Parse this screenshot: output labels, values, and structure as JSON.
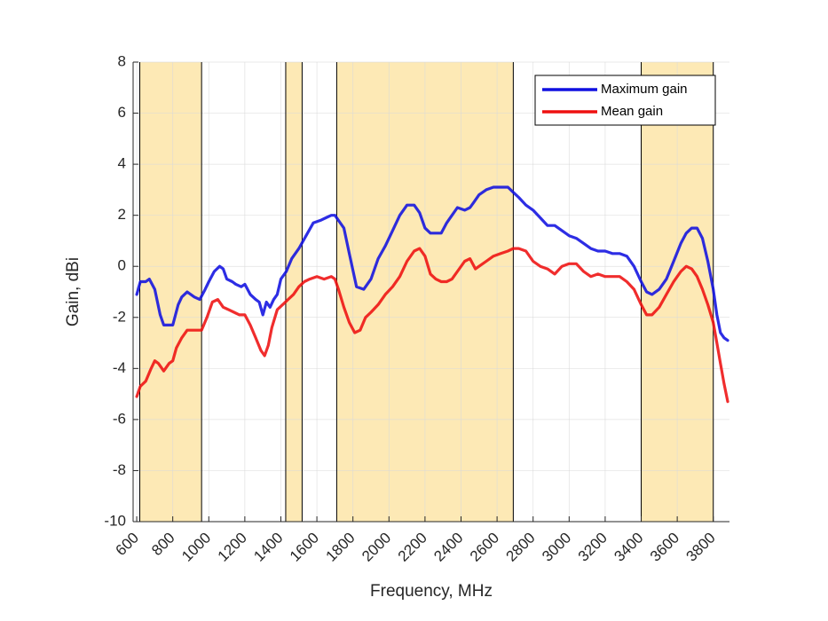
{
  "chart_data": {
    "type": "line",
    "title": "",
    "xlabel": "Frequency, MHz",
    "ylabel": "Gain, dBi",
    "xlim": [
      580,
      3890
    ],
    "ylim": [
      -10,
      8
    ],
    "xticks": [
      600,
      800,
      1000,
      1200,
      1400,
      1600,
      1800,
      2000,
      2200,
      2400,
      2600,
      2800,
      3000,
      3200,
      3400,
      3600,
      3800
    ],
    "xtick_labels": [
      "600",
      "800",
      "1000",
      "1200",
      "1400",
      "1600",
      "1800",
      "2000",
      "2200",
      "2400",
      "2600",
      "2800",
      "3000",
      "3200",
      "3400",
      "3600",
      "3800"
    ],
    "yticks": [
      -10,
      -8,
      -6,
      -4,
      -2,
      0,
      2,
      4,
      6,
      8
    ],
    "ytick_labels": [
      "-10",
      "-8",
      "-6",
      "-4",
      "-2",
      "0",
      "2",
      "4",
      "6",
      "8"
    ],
    "grid": true,
    "legend_position": "top-right",
    "bands": [
      {
        "start": 617,
        "end": 960
      },
      {
        "start": 1427,
        "end": 1518
      },
      {
        "start": 1710,
        "end": 2690
      },
      {
        "start": 3400,
        "end": 3800
      }
    ],
    "colors": {
      "band_fill": "#fde9b5",
      "band_edge": "#000000",
      "grid": "#e6e6e6",
      "axis": "#262626"
    },
    "series": [
      {
        "name": "Maximum gain",
        "color": "#1010e0",
        "x": [
          600,
          620,
          650,
          670,
          700,
          730,
          750,
          780,
          800,
          830,
          850,
          880,
          920,
          950,
          980,
          1000,
          1030,
          1060,
          1080,
          1100,
          1130,
          1150,
          1180,
          1200,
          1230,
          1260,
          1280,
          1300,
          1320,
          1340,
          1360,
          1380,
          1400,
          1430,
          1460,
          1500,
          1540,
          1580,
          1620,
          1650,
          1680,
          1700,
          1720,
          1750,
          1780,
          1820,
          1860,
          1900,
          1940,
          1980,
          2020,
          2060,
          2100,
          2140,
          2170,
          2200,
          2230,
          2260,
          2290,
          2320,
          2350,
          2380,
          2420,
          2450,
          2470,
          2500,
          2540,
          2580,
          2620,
          2660,
          2690,
          2720,
          2760,
          2800,
          2840,
          2880,
          2920,
          2960,
          3000,
          3040,
          3080,
          3120,
          3160,
          3200,
          3240,
          3280,
          3320,
          3360,
          3400,
          3430,
          3460,
          3500,
          3540,
          3580,
          3620,
          3650,
          3680,
          3710,
          3740,
          3770,
          3800,
          3820,
          3840,
          3860,
          3880
        ],
        "y": [
          -1.1,
          -0.6,
          -0.6,
          -0.5,
          -0.9,
          -1.9,
          -2.3,
          -2.3,
          -2.3,
          -1.5,
          -1.2,
          -1.0,
          -1.2,
          -1.3,
          -0.9,
          -0.6,
          -0.2,
          0.0,
          -0.1,
          -0.5,
          -0.6,
          -0.7,
          -0.8,
          -0.7,
          -1.1,
          -1.3,
          -1.4,
          -1.9,
          -1.4,
          -1.6,
          -1.3,
          -1.1,
          -0.5,
          -0.2,
          0.3,
          0.7,
          1.2,
          1.7,
          1.8,
          1.9,
          2.0,
          2.0,
          1.8,
          1.5,
          0.5,
          -0.8,
          -0.9,
          -0.5,
          0.3,
          0.8,
          1.4,
          2.0,
          2.4,
          2.4,
          2.1,
          1.5,
          1.3,
          1.3,
          1.3,
          1.7,
          2.0,
          2.3,
          2.2,
          2.3,
          2.5,
          2.8,
          3.0,
          3.1,
          3.1,
          3.1,
          2.9,
          2.7,
          2.4,
          2.2,
          1.9,
          1.6,
          1.6,
          1.4,
          1.2,
          1.1,
          0.9,
          0.7,
          0.6,
          0.6,
          0.5,
          0.5,
          0.4,
          0.0,
          -0.6,
          -1.0,
          -1.1,
          -0.9,
          -0.5,
          0.2,
          0.9,
          1.3,
          1.5,
          1.5,
          1.1,
          0.2,
          -0.9,
          -1.9,
          -2.6,
          -2.8,
          -2.9
        ]
      },
      {
        "name": "Mean gain",
        "color": "#ee1010",
        "x": [
          600,
          620,
          650,
          680,
          700,
          720,
          750,
          780,
          800,
          820,
          850,
          880,
          920,
          960,
          990,
          1020,
          1050,
          1080,
          1110,
          1140,
          1170,
          1200,
          1230,
          1260,
          1290,
          1310,
          1330,
          1350,
          1380,
          1410,
          1440,
          1470,
          1500,
          1530,
          1560,
          1600,
          1640,
          1680,
          1700,
          1720,
          1750,
          1780,
          1810,
          1840,
          1870,
          1900,
          1940,
          1980,
          2020,
          2060,
          2100,
          2140,
          2170,
          2200,
          2230,
          2260,
          2290,
          2320,
          2350,
          2380,
          2420,
          2450,
          2480,
          2500,
          2540,
          2580,
          2620,
          2660,
          2690,
          2720,
          2760,
          2800,
          2840,
          2880,
          2920,
          2960,
          3000,
          3040,
          3080,
          3120,
          3160,
          3200,
          3240,
          3280,
          3320,
          3360,
          3400,
          3430,
          3460,
          3500,
          3540,
          3580,
          3620,
          3650,
          3680,
          3710,
          3740,
          3770,
          3800,
          3820,
          3840,
          3860,
          3880
        ],
        "y": [
          -5.1,
          -4.7,
          -4.5,
          -4.0,
          -3.7,
          -3.8,
          -4.1,
          -3.8,
          -3.7,
          -3.2,
          -2.8,
          -2.5,
          -2.5,
          -2.5,
          -2.0,
          -1.4,
          -1.3,
          -1.6,
          -1.7,
          -1.8,
          -1.9,
          -1.9,
          -2.3,
          -2.8,
          -3.3,
          -3.5,
          -3.1,
          -2.4,
          -1.7,
          -1.5,
          -1.3,
          -1.1,
          -0.8,
          -0.6,
          -0.5,
          -0.4,
          -0.5,
          -0.4,
          -0.5,
          -0.9,
          -1.6,
          -2.2,
          -2.6,
          -2.5,
          -2.0,
          -1.8,
          -1.5,
          -1.1,
          -0.8,
          -0.4,
          0.2,
          0.6,
          0.7,
          0.4,
          -0.3,
          -0.5,
          -0.6,
          -0.6,
          -0.5,
          -0.2,
          0.2,
          0.3,
          -0.1,
          0.0,
          0.2,
          0.4,
          0.5,
          0.6,
          0.7,
          0.7,
          0.6,
          0.2,
          0.0,
          -0.1,
          -0.3,
          0.0,
          0.1,
          0.1,
          -0.2,
          -0.4,
          -0.3,
          -0.4,
          -0.4,
          -0.4,
          -0.6,
          -0.9,
          -1.5,
          -1.9,
          -1.9,
          -1.6,
          -1.1,
          -0.6,
          -0.2,
          0.0,
          -0.1,
          -0.4,
          -0.9,
          -1.5,
          -2.2,
          -3.0,
          -3.8,
          -4.6,
          -5.3
        ]
      }
    ]
  }
}
